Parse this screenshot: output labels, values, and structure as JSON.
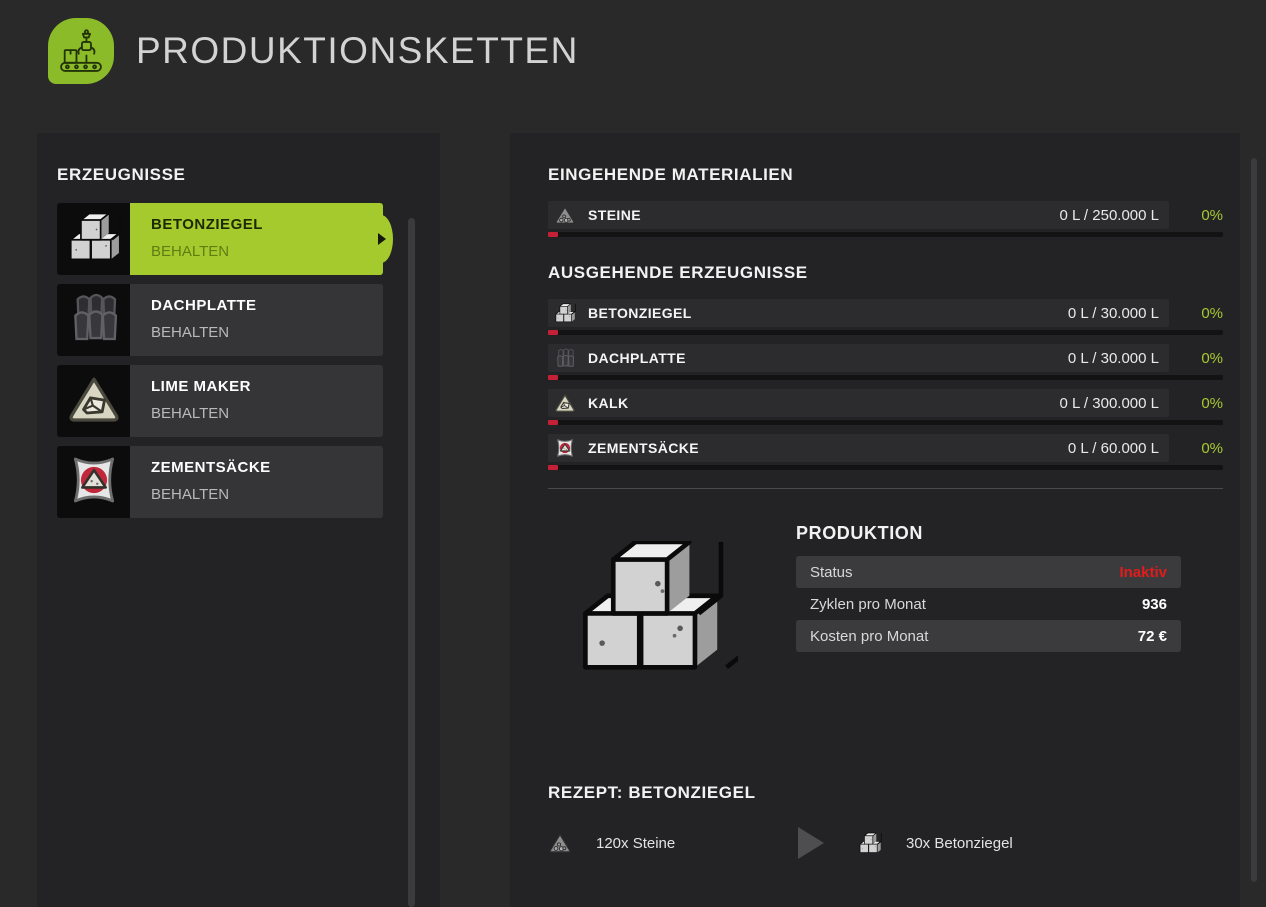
{
  "header": {
    "title": "PRODUKTIONSKETTEN"
  },
  "colors": {
    "brand_green": "#8cbb2a",
    "select_green": "#a5ca2e",
    "accent_green": "#a6c930",
    "marker_red": "#c52036",
    "status_red": "#e31b1b"
  },
  "sidebar": {
    "heading": "ERZEUGNISSE",
    "items": [
      {
        "name": "BETONZIEGEL",
        "mode": "BEHALTEN",
        "icon": "concrete-blocks",
        "selected": true
      },
      {
        "name": "DACHPLATTE",
        "mode": "BEHALTEN",
        "icon": "roof-plates",
        "selected": false
      },
      {
        "name": "LIME MAKER",
        "mode": "BEHALTEN",
        "icon": "limestone",
        "selected": false
      },
      {
        "name": "ZEMENTSÄCKE",
        "mode": "BEHALTEN",
        "icon": "cement-bag",
        "selected": false
      }
    ]
  },
  "main": {
    "inputs_heading": "EINGEHENDE MATERIALIEN",
    "inputs": [
      {
        "name": "STEINE",
        "amount": "0 L / 250.000 L",
        "percent": "0%",
        "icon": "stones"
      }
    ],
    "outputs_heading": "AUSGEHENDE ERZEUGNISSE",
    "outputs": [
      {
        "name": "BETONZIEGEL",
        "amount": "0 L / 30.000 L",
        "percent": "0%",
        "icon": "concrete-blocks"
      },
      {
        "name": "DACHPLATTE",
        "amount": "0 L / 30.000 L",
        "percent": "0%",
        "icon": "roof-plates"
      },
      {
        "name": "KALK",
        "amount": "0 L / 300.000 L",
        "percent": "0%",
        "icon": "limestone"
      },
      {
        "name": "ZEMENTSÄCKE",
        "amount": "0 L / 60.000 L",
        "percent": "0%",
        "icon": "cement-bag"
      }
    ],
    "production": {
      "heading": "PRODUKTION",
      "rows": [
        {
          "label": "Status",
          "value": "Inaktiv",
          "shaded": true,
          "accent": "#e31b1b"
        },
        {
          "label": "Zyklen pro Monat",
          "value": "936",
          "shaded": false
        },
        {
          "label": "Kosten pro Monat",
          "value": "72 €",
          "shaded": true
        }
      ]
    },
    "recipe": {
      "heading": "REZEPT: BETONZIEGEL",
      "input_text": "120x Steine",
      "input_icon": "stones",
      "output_text": "30x Betonziegel",
      "output_icon": "concrete-blocks"
    }
  }
}
